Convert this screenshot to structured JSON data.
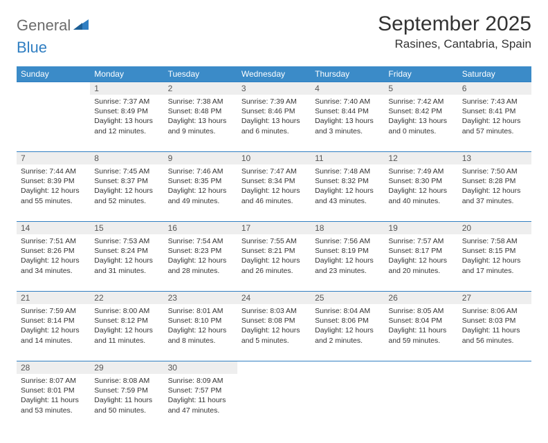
{
  "logo": {
    "general": "General",
    "blue": "Blue"
  },
  "title": "September 2025",
  "location": "Rasines, Cantabria, Spain",
  "colors": {
    "header_bg": "#3b8bc8",
    "header_text": "#ffffff",
    "daynum_bg": "#eeeeee",
    "border": "#2f7ec2",
    "logo_gray": "#6b6b6b",
    "logo_blue": "#2f7ec2"
  },
  "weekdays": [
    "Sunday",
    "Monday",
    "Tuesday",
    "Wednesday",
    "Thursday",
    "Friday",
    "Saturday"
  ],
  "weeks": [
    [
      null,
      {
        "n": "1",
        "sr": "7:37 AM",
        "ss": "8:49 PM",
        "dl": "13 hours and 12 minutes."
      },
      {
        "n": "2",
        "sr": "7:38 AM",
        "ss": "8:48 PM",
        "dl": "13 hours and 9 minutes."
      },
      {
        "n": "3",
        "sr": "7:39 AM",
        "ss": "8:46 PM",
        "dl": "13 hours and 6 minutes."
      },
      {
        "n": "4",
        "sr": "7:40 AM",
        "ss": "8:44 PM",
        "dl": "13 hours and 3 minutes."
      },
      {
        "n": "5",
        "sr": "7:42 AM",
        "ss": "8:42 PM",
        "dl": "13 hours and 0 minutes."
      },
      {
        "n": "6",
        "sr": "7:43 AM",
        "ss": "8:41 PM",
        "dl": "12 hours and 57 minutes."
      }
    ],
    [
      {
        "n": "7",
        "sr": "7:44 AM",
        "ss": "8:39 PM",
        "dl": "12 hours and 55 minutes."
      },
      {
        "n": "8",
        "sr": "7:45 AM",
        "ss": "8:37 PM",
        "dl": "12 hours and 52 minutes."
      },
      {
        "n": "9",
        "sr": "7:46 AM",
        "ss": "8:35 PM",
        "dl": "12 hours and 49 minutes."
      },
      {
        "n": "10",
        "sr": "7:47 AM",
        "ss": "8:34 PM",
        "dl": "12 hours and 46 minutes."
      },
      {
        "n": "11",
        "sr": "7:48 AM",
        "ss": "8:32 PM",
        "dl": "12 hours and 43 minutes."
      },
      {
        "n": "12",
        "sr": "7:49 AM",
        "ss": "8:30 PM",
        "dl": "12 hours and 40 minutes."
      },
      {
        "n": "13",
        "sr": "7:50 AM",
        "ss": "8:28 PM",
        "dl": "12 hours and 37 minutes."
      }
    ],
    [
      {
        "n": "14",
        "sr": "7:51 AM",
        "ss": "8:26 PM",
        "dl": "12 hours and 34 minutes."
      },
      {
        "n": "15",
        "sr": "7:53 AM",
        "ss": "8:24 PM",
        "dl": "12 hours and 31 minutes."
      },
      {
        "n": "16",
        "sr": "7:54 AM",
        "ss": "8:23 PM",
        "dl": "12 hours and 28 minutes."
      },
      {
        "n": "17",
        "sr": "7:55 AM",
        "ss": "8:21 PM",
        "dl": "12 hours and 26 minutes."
      },
      {
        "n": "18",
        "sr": "7:56 AM",
        "ss": "8:19 PM",
        "dl": "12 hours and 23 minutes."
      },
      {
        "n": "19",
        "sr": "7:57 AM",
        "ss": "8:17 PM",
        "dl": "12 hours and 20 minutes."
      },
      {
        "n": "20",
        "sr": "7:58 AM",
        "ss": "8:15 PM",
        "dl": "12 hours and 17 minutes."
      }
    ],
    [
      {
        "n": "21",
        "sr": "7:59 AM",
        "ss": "8:14 PM",
        "dl": "12 hours and 14 minutes."
      },
      {
        "n": "22",
        "sr": "8:00 AM",
        "ss": "8:12 PM",
        "dl": "12 hours and 11 minutes."
      },
      {
        "n": "23",
        "sr": "8:01 AM",
        "ss": "8:10 PM",
        "dl": "12 hours and 8 minutes."
      },
      {
        "n": "24",
        "sr": "8:03 AM",
        "ss": "8:08 PM",
        "dl": "12 hours and 5 minutes."
      },
      {
        "n": "25",
        "sr": "8:04 AM",
        "ss": "8:06 PM",
        "dl": "12 hours and 2 minutes."
      },
      {
        "n": "26",
        "sr": "8:05 AM",
        "ss": "8:04 PM",
        "dl": "11 hours and 59 minutes."
      },
      {
        "n": "27",
        "sr": "8:06 AM",
        "ss": "8:03 PM",
        "dl": "11 hours and 56 minutes."
      }
    ],
    [
      {
        "n": "28",
        "sr": "8:07 AM",
        "ss": "8:01 PM",
        "dl": "11 hours and 53 minutes."
      },
      {
        "n": "29",
        "sr": "8:08 AM",
        "ss": "7:59 PM",
        "dl": "11 hours and 50 minutes."
      },
      {
        "n": "30",
        "sr": "8:09 AM",
        "ss": "7:57 PM",
        "dl": "11 hours and 47 minutes."
      },
      null,
      null,
      null,
      null
    ]
  ],
  "labels": {
    "sunrise": "Sunrise:",
    "sunset": "Sunset:",
    "daylight": "Daylight:"
  }
}
